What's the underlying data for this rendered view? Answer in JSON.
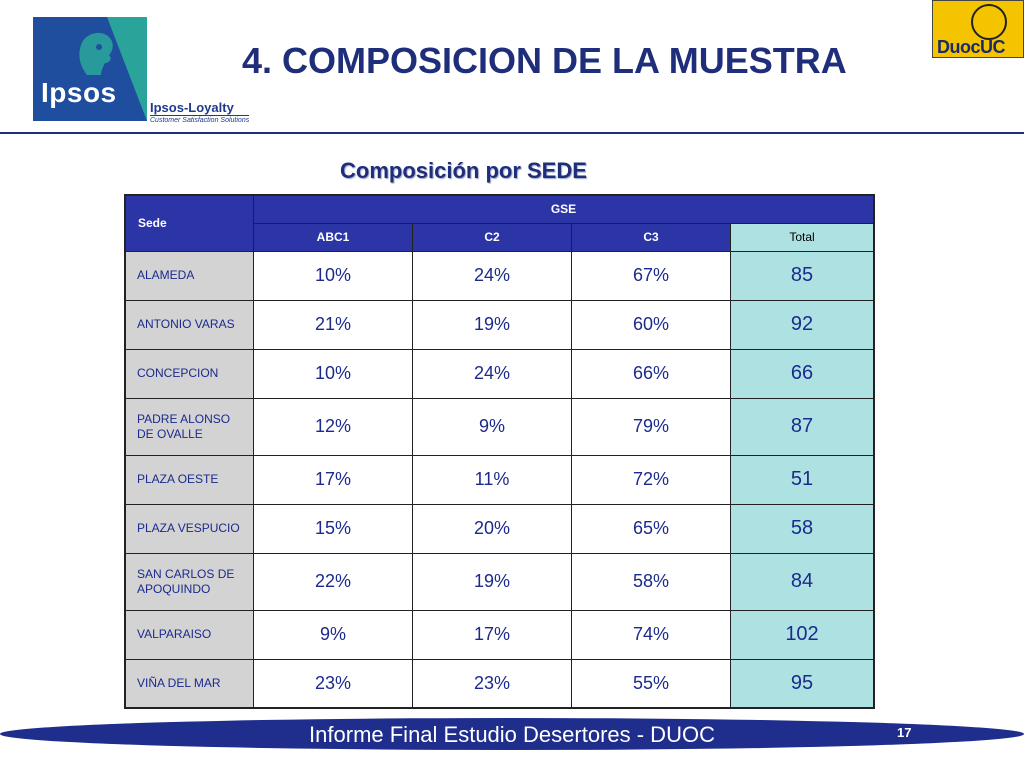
{
  "header": {
    "title": "4. COMPOSICION DE LA MUESTRA",
    "ipsos_logo_text": "Ipsos",
    "loyalty_title": "Ipsos-Loyalty",
    "loyalty_tagline": "Customer Satisfaction Solutions",
    "duoc_logo_text": "DuocUC"
  },
  "subtitle": "Composición por SEDE",
  "table": {
    "row_header": "Sede",
    "group_header": "GSE",
    "columns": [
      "ABC1",
      "C2",
      "C3",
      "Total"
    ],
    "rows": [
      {
        "sede": "ALAMEDA",
        "abc1": "10%",
        "c2": "24%",
        "c3": "67%",
        "total": "85"
      },
      {
        "sede": "ANTONIO VARAS",
        "abc1": "21%",
        "c2": "19%",
        "c3": "60%",
        "total": "92"
      },
      {
        "sede": "CONCEPCION",
        "abc1": "10%",
        "c2": "24%",
        "c3": "66%",
        "total": "66"
      },
      {
        "sede": "PADRE ALONSO DE OVALLE",
        "abc1": "12%",
        "c2": "9%",
        "c3": "79%",
        "total": "87"
      },
      {
        "sede": "PLAZA OESTE",
        "abc1": "17%",
        "c2": "11%",
        "c3": "72%",
        "total": "51"
      },
      {
        "sede": "PLAZA VESPUCIO",
        "abc1": "15%",
        "c2": "20%",
        "c3": "65%",
        "total": "58"
      },
      {
        "sede": "SAN CARLOS DE APOQUINDO",
        "abc1": "22%",
        "c2": "19%",
        "c3": "58%",
        "total": "84"
      },
      {
        "sede": "VALPARAISO",
        "abc1": "9%",
        "c2": "17%",
        "c3": "74%",
        "total": "102"
      },
      {
        "sede": "VIÑA DEL MAR",
        "abc1": "23%",
        "c2": "23%",
        "c3": "55%",
        "total": "95"
      }
    ]
  },
  "footer": {
    "text": "Informe Final Estudio Desertores - DUOC",
    "page": "17"
  },
  "colors": {
    "title": "#1f2e7a",
    "header_fill": "#2b35a6",
    "total_fill": "#aee2e2",
    "sede_fill": "#d3d3d3",
    "footer_fill": "#1f2e8c"
  }
}
